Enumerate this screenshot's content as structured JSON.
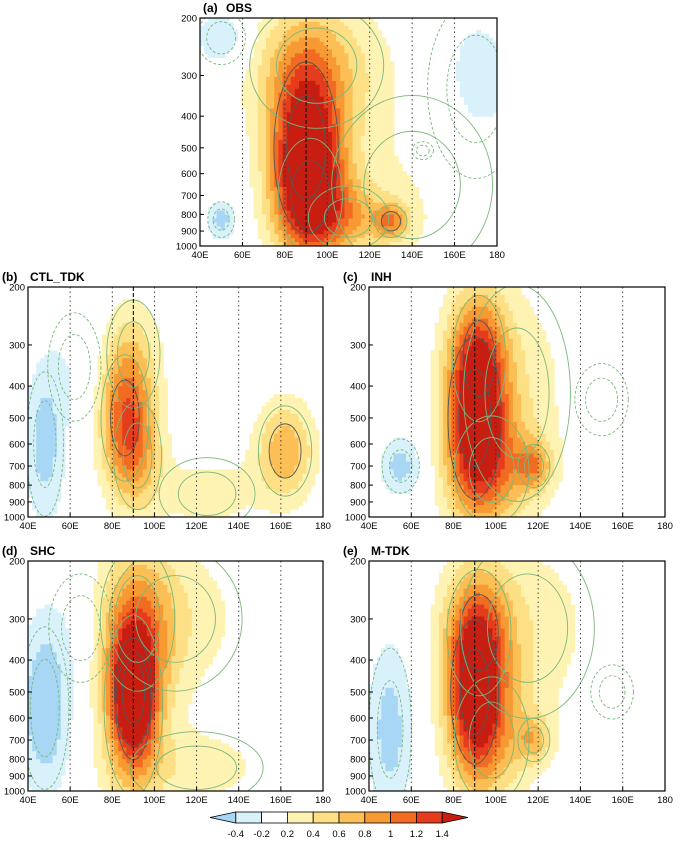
{
  "chart_data": {
    "type": "heatmap",
    "x_ticks": [
      "40E",
      "60E",
      "80E",
      "100E",
      "120E",
      "140E",
      "160E",
      "180"
    ],
    "x_values": [
      40,
      60,
      80,
      100,
      120,
      140,
      160,
      180
    ],
    "y_ticks": [
      "200",
      "300",
      "400",
      "500",
      "600",
      "700",
      "800",
      "900",
      "1000"
    ],
    "y_values": [
      200,
      300,
      400,
      500,
      600,
      700,
      800,
      900,
      1000
    ],
    "xlim": [
      40,
      180
    ],
    "ylim": [
      1000,
      200
    ],
    "y_scale": "log-pressure",
    "grid": "dotted-longitude-lines",
    "reference_longitude": 90,
    "colorbar": {
      "labels": [
        "-0.4",
        "-0.2",
        "0.2",
        "0.4",
        "0.6",
        "0.8",
        "1",
        "1.2",
        "1.4"
      ],
      "levels": [
        -0.4,
        -0.2,
        0.2,
        0.4,
        0.6,
        0.8,
        1,
        1.2,
        1.4
      ],
      "colors": [
        "#a8d6f5",
        "#d8f1fb",
        "#ffffff",
        "#fff3b3",
        "#fde085",
        "#fbbf55",
        "#f79a34",
        "#f26b22",
        "#e43c1c",
        "#c81e12"
      ]
    },
    "panels": [
      {
        "label": "(a)",
        "title": "OBS",
        "lobes": [
          {
            "lon": 90,
            "p": 500,
            "value": 1.45,
            "sx": 12,
            "sy": 0.48
          },
          {
            "lon": 92,
            "p": 700,
            "value": 0.8,
            "sx": 12,
            "sy": 0.32
          },
          {
            "lon": 110,
            "p": 820,
            "value": 0.5,
            "sx": 15,
            "sy": 0.18
          },
          {
            "lon": 130,
            "p": 840,
            "value": 0.7,
            "sx": 6,
            "sy": 0.09
          },
          {
            "lon": 95,
            "p": 280,
            "value": 0.5,
            "sx": 25,
            "sy": 0.35
          },
          {
            "lon": 140,
            "p": 650,
            "value": 0.2,
            "sx": 30,
            "sy": 0.5
          },
          {
            "lon": 50,
            "p": 230,
            "value": -0.45,
            "sx": 9,
            "sy": 0.15
          },
          {
            "lon": 50,
            "p": 830,
            "value": -0.5,
            "sx": 5,
            "sy": 0.1
          },
          {
            "lon": 170,
            "p": 330,
            "value": -0.3,
            "sx": 18,
            "sy": 0.5
          },
          {
            "lon": 145,
            "p": 510,
            "value": -0.25,
            "sx": 4,
            "sy": 0.05
          }
        ]
      },
      {
        "label": "(b)",
        "title": "CTL_TDK",
        "lobes": [
          {
            "lon": 86,
            "p": 500,
            "value": 0.9,
            "sx": 9,
            "sy": 0.35
          },
          {
            "lon": 92,
            "p": 650,
            "value": 0.5,
            "sx": 9,
            "sy": 0.3
          },
          {
            "lon": 90,
            "p": 320,
            "value": 0.35,
            "sx": 10,
            "sy": 0.3
          },
          {
            "lon": 162,
            "p": 630,
            "value": 0.75,
            "sx": 10,
            "sy": 0.25
          },
          {
            "lon": 125,
            "p": 850,
            "value": 0.3,
            "sx": 18,
            "sy": 0.2
          },
          {
            "lon": 48,
            "p": 600,
            "value": -0.5,
            "sx": 7,
            "sy": 0.4
          },
          {
            "lon": 62,
            "p": 350,
            "value": -0.15,
            "sx": 10,
            "sy": 0.3
          }
        ]
      },
      {
        "label": "(c)",
        "title": "INH",
        "lobes": [
          {
            "lon": 90,
            "p": 500,
            "value": 1.25,
            "sx": 10,
            "sy": 0.45
          },
          {
            "lon": 92,
            "p": 330,
            "value": 0.7,
            "sx": 10,
            "sy": 0.35
          },
          {
            "lon": 98,
            "p": 720,
            "value": 0.6,
            "sx": 14,
            "sy": 0.3
          },
          {
            "lon": 118,
            "p": 700,
            "value": 0.65,
            "sx": 6,
            "sy": 0.12
          },
          {
            "lon": 110,
            "p": 420,
            "value": 0.3,
            "sx": 20,
            "sy": 0.6
          },
          {
            "lon": 55,
            "p": 700,
            "value": -0.5,
            "sx": 7,
            "sy": 0.15
          },
          {
            "lon": 150,
            "p": 440,
            "value": -0.15,
            "sx": 10,
            "sy": 0.2
          }
        ]
      },
      {
        "label": "(d)",
        "title": "SHC",
        "lobes": [
          {
            "lon": 90,
            "p": 500,
            "value": 1.3,
            "sx": 7,
            "sy": 0.3
          },
          {
            "lon": 90,
            "p": 550,
            "value": 0.8,
            "sx": 11,
            "sy": 0.5
          },
          {
            "lon": 92,
            "p": 300,
            "value": 0.5,
            "sx": 14,
            "sy": 0.4
          },
          {
            "lon": 110,
            "p": 300,
            "value": 0.3,
            "sx": 25,
            "sy": 0.4
          },
          {
            "lon": 120,
            "p": 850,
            "value": 0.3,
            "sx": 25,
            "sy": 0.2
          },
          {
            "lon": 48,
            "p": 560,
            "value": -0.6,
            "sx": 9,
            "sy": 0.45
          },
          {
            "lon": 65,
            "p": 320,
            "value": -0.15,
            "sx": 12,
            "sy": 0.3
          }
        ]
      },
      {
        "label": "(e)",
        "title": "M-TDK",
        "lobes": [
          {
            "lon": 90,
            "p": 500,
            "value": 1.3,
            "sx": 9,
            "sy": 0.4
          },
          {
            "lon": 92,
            "p": 330,
            "value": 0.7,
            "sx": 12,
            "sy": 0.35
          },
          {
            "lon": 98,
            "p": 700,
            "value": 0.55,
            "sx": 14,
            "sy": 0.35
          },
          {
            "lon": 118,
            "p": 700,
            "value": 0.5,
            "sx": 6,
            "sy": 0.12
          },
          {
            "lon": 115,
            "p": 320,
            "value": 0.3,
            "sx": 25,
            "sy": 0.5
          },
          {
            "lon": 50,
            "p": 650,
            "value": -0.5,
            "sx": 8,
            "sy": 0.45
          },
          {
            "lon": 155,
            "p": 500,
            "value": -0.2,
            "sx": 8,
            "sy": 0.15
          }
        ]
      }
    ]
  }
}
